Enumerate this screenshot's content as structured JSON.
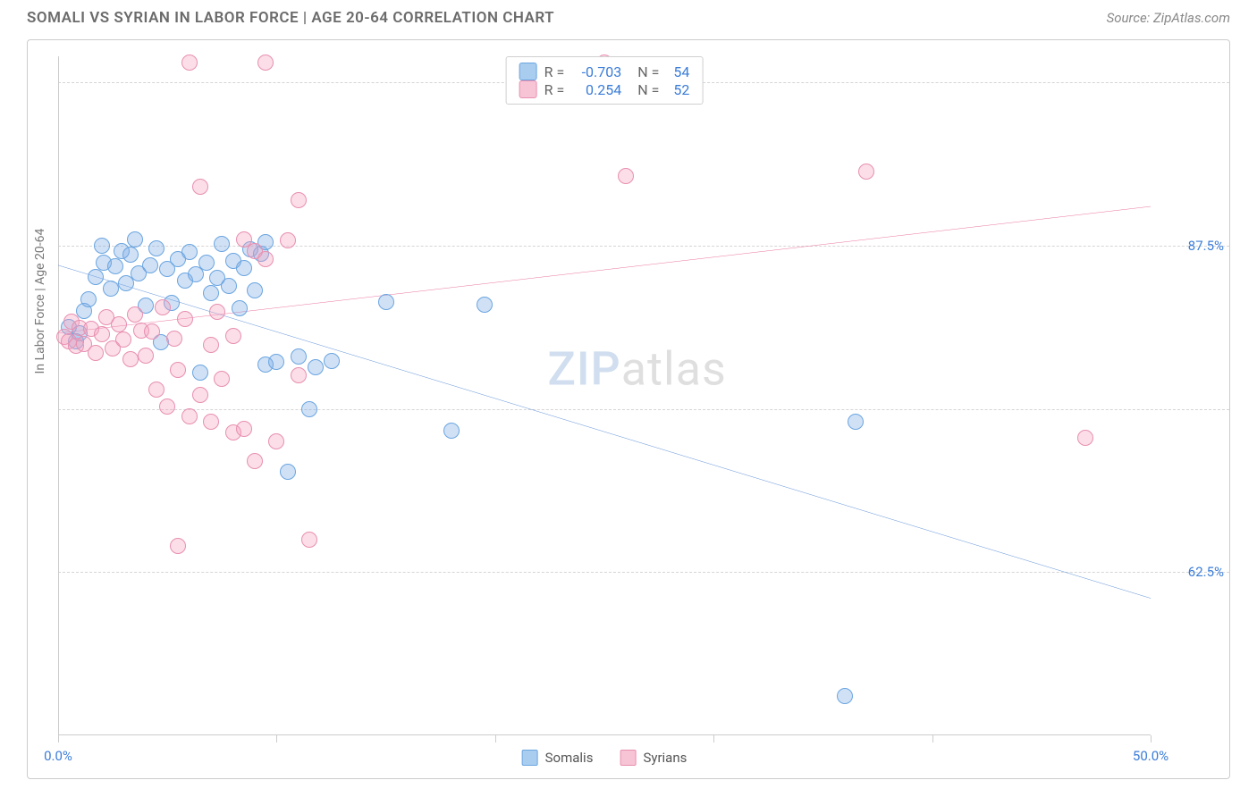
{
  "title": "SOMALI VS SYRIAN IN LABOR FORCE | AGE 20-64 CORRELATION CHART",
  "source": "Source: ZipAtlas.com",
  "y_axis_label": "In Labor Force | Age 20-64",
  "watermark_a": "ZIP",
  "watermark_b": "atlas",
  "chart": {
    "type": "scatter-with-regression",
    "background_color": "#ffffff",
    "grid_color": "#d5d5d5",
    "border_color": "#cccccc",
    "x_domain": [
      0,
      50
    ],
    "y_domain": [
      50,
      102
    ],
    "x_ticks": [
      0,
      10,
      20,
      30,
      40,
      50
    ],
    "x_tick_labels": {
      "0": "0.0%",
      "50": "50.0%"
    },
    "y_gridlines": [
      62.5,
      75.0,
      87.5,
      100.0
    ],
    "y_tick_labels": {
      "62.5": "62.5%",
      "75.0": "75.0%",
      "87.5": "87.5%",
      "100.0": "100.0%"
    },
    "point_radius": 9,
    "point_stroke_width": 1.5,
    "trend_line_width": 2,
    "series": [
      {
        "name": "Somalis",
        "fill": "rgba(120,170,230,0.35)",
        "stroke": "#6aa5e0",
        "swatch_fill": "#a9cdef",
        "swatch_stroke": "#6aa5e0",
        "trend_color": "#2166c9",
        "R": "-0.703",
        "N": "54",
        "trend": {
          "x1": 0,
          "y1": 86.0,
          "x2": 50,
          "y2": 60.5
        },
        "points": [
          [
            0.5,
            81.3
          ],
          [
            0.8,
            80.2
          ],
          [
            1.0,
            80.8
          ],
          [
            1.2,
            82.5
          ],
          [
            1.4,
            83.4
          ],
          [
            1.7,
            85.1
          ],
          [
            2.0,
            87.5
          ],
          [
            2.1,
            86.2
          ],
          [
            2.4,
            84.2
          ],
          [
            2.6,
            85.9
          ],
          [
            2.9,
            87.1
          ],
          [
            3.1,
            84.6
          ],
          [
            3.3,
            86.8
          ],
          [
            3.5,
            88.0
          ],
          [
            3.7,
            85.4
          ],
          [
            4.0,
            82.9
          ],
          [
            4.2,
            86.0
          ],
          [
            4.5,
            87.3
          ],
          [
            4.7,
            80.1
          ],
          [
            5.0,
            85.7
          ],
          [
            5.2,
            83.1
          ],
          [
            5.5,
            86.5
          ],
          [
            5.8,
            84.8
          ],
          [
            6.0,
            87.0
          ],
          [
            6.3,
            85.3
          ],
          [
            6.5,
            77.8
          ],
          [
            6.8,
            86.2
          ],
          [
            7.0,
            83.9
          ],
          [
            7.3,
            85.0
          ],
          [
            7.5,
            87.6
          ],
          [
            7.8,
            84.4
          ],
          [
            8.0,
            86.3
          ],
          [
            8.3,
            82.7
          ],
          [
            8.5,
            85.8
          ],
          [
            8.8,
            87.2
          ],
          [
            9.0,
            84.1
          ],
          [
            9.3,
            86.9
          ],
          [
            9.5,
            78.4
          ],
          [
            9.5,
            87.8
          ],
          [
            10.0,
            78.6
          ],
          [
            10.5,
            70.2
          ],
          [
            11.0,
            79.0
          ],
          [
            11.5,
            75.0
          ],
          [
            11.8,
            78.2
          ],
          [
            12.5,
            78.7
          ],
          [
            15.0,
            83.2
          ],
          [
            18.0,
            73.3
          ],
          [
            19.5,
            83.0
          ],
          [
            36.5,
            74.0
          ],
          [
            36.0,
            53.0
          ]
        ]
      },
      {
        "name": "Syrians",
        "fill": "rgba(244,160,190,0.35)",
        "stroke": "#e88fb0",
        "swatch_fill": "#f7c4d5",
        "swatch_stroke": "#e88fb0",
        "trend_color": "#e23d7a",
        "R": "0.254",
        "N": "52",
        "trend": {
          "x1": 0,
          "y1": 80.8,
          "x2": 50,
          "y2": 90.5
        },
        "points": [
          [
            0.3,
            80.5
          ],
          [
            0.5,
            80.2
          ],
          [
            0.6,
            81.7
          ],
          [
            0.8,
            79.8
          ],
          [
            1.0,
            81.2
          ],
          [
            1.2,
            80.0
          ],
          [
            1.5,
            81.1
          ],
          [
            1.7,
            79.3
          ],
          [
            2.0,
            80.7
          ],
          [
            2.2,
            82.0
          ],
          [
            2.5,
            79.6
          ],
          [
            2.8,
            81.5
          ],
          [
            3.0,
            80.3
          ],
          [
            3.3,
            78.8
          ],
          [
            3.5,
            82.2
          ],
          [
            3.8,
            81.0
          ],
          [
            4.0,
            79.1
          ],
          [
            4.3,
            80.9
          ],
          [
            4.5,
            76.5
          ],
          [
            4.8,
            82.8
          ],
          [
            5.0,
            75.2
          ],
          [
            5.3,
            80.4
          ],
          [
            5.5,
            78.0
          ],
          [
            5.8,
            81.9
          ],
          [
            5.5,
            64.5
          ],
          [
            6.0,
            74.4
          ],
          [
            6.0,
            101.5
          ],
          [
            6.5,
            76.1
          ],
          [
            6.5,
            92.0
          ],
          [
            7.0,
            79.9
          ],
          [
            7.0,
            74.0
          ],
          [
            7.3,
            82.4
          ],
          [
            7.5,
            77.3
          ],
          [
            8.0,
            80.6
          ],
          [
            8.0,
            73.2
          ],
          [
            8.5,
            88.0
          ],
          [
            8.5,
            73.5
          ],
          [
            9.0,
            87.1
          ],
          [
            9.0,
            71.0
          ],
          [
            9.5,
            86.5
          ],
          [
            9.5,
            101.5
          ],
          [
            10.0,
            72.5
          ],
          [
            10.5,
            87.9
          ],
          [
            11.0,
            91.0
          ],
          [
            11.0,
            77.6
          ],
          [
            11.5,
            65.0
          ],
          [
            25.0,
            101.5
          ],
          [
            26.0,
            92.8
          ],
          [
            37.0,
            93.2
          ],
          [
            47.0,
            72.8
          ]
        ]
      }
    ]
  },
  "legend_top": {
    "rows": [
      {
        "swatch_fill": "#a9cdef",
        "swatch_stroke": "#6aa5e0",
        "r_label": "R =",
        "r_val": "-0.703",
        "n_label": "N =",
        "n_val": "54"
      },
      {
        "swatch_fill": "#f7c4d5",
        "swatch_stroke": "#e88fb0",
        "r_label": "R =",
        "r_val": "0.254",
        "n_label": "N =",
        "n_val": "52"
      }
    ]
  },
  "legend_bottom": {
    "items": [
      {
        "swatch_fill": "#a9cdef",
        "swatch_stroke": "#6aa5e0",
        "label": "Somalis"
      },
      {
        "swatch_fill": "#f7c4d5",
        "swatch_stroke": "#e88fb0",
        "label": "Syrians"
      }
    ]
  }
}
